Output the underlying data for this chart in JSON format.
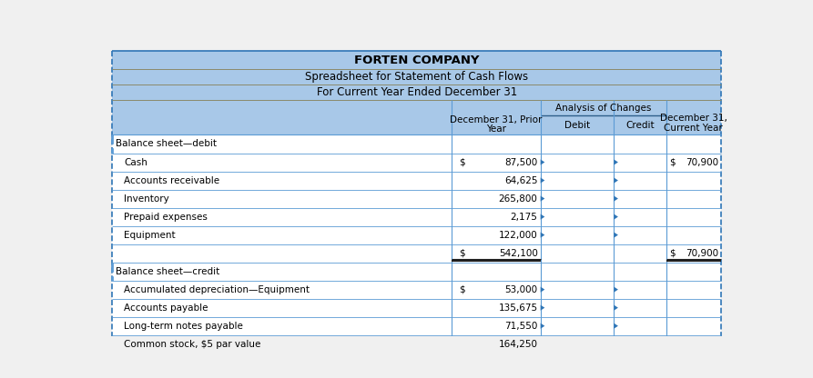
{
  "title1": "FORTEN COMPANY",
  "title2": "Spreadsheet for Statement of Cash Flows",
  "title3": "For Current Year Ended December 31",
  "header_bg": "#7DB3D8",
  "light_blue_bg": "#A8C8E8",
  "white_bg": "#FFFFFF",
  "col_headers_line1": [
    "December 31, Prior",
    "Analysis of Changes",
    "December 31,"
  ],
  "col_headers_line2": [
    "Year",
    "",
    "Current Year"
  ],
  "sub_headers": [
    "Debit",
    "Credit"
  ],
  "rows": [
    {
      "label": "Balance sheet—debit",
      "indent": 0,
      "prior": "",
      "prior_dollar": false,
      "current": "",
      "current_dollar": false,
      "section_header": true,
      "total_row": false,
      "has_triangle": false
    },
    {
      "label": "Cash",
      "indent": 1,
      "prior": "87,500",
      "prior_dollar": true,
      "current": "70,900",
      "current_dollar": true,
      "section_header": false,
      "total_row": false,
      "has_triangle": true
    },
    {
      "label": "Accounts receivable",
      "indent": 1,
      "prior": "64,625",
      "prior_dollar": false,
      "current": "",
      "current_dollar": false,
      "section_header": false,
      "total_row": false,
      "has_triangle": true
    },
    {
      "label": "Inventory",
      "indent": 1,
      "prior": "265,800",
      "prior_dollar": false,
      "current": "",
      "current_dollar": false,
      "section_header": false,
      "total_row": false,
      "has_triangle": true
    },
    {
      "label": "Prepaid expenses",
      "indent": 1,
      "prior": "2,175",
      "prior_dollar": false,
      "current": "",
      "current_dollar": false,
      "section_header": false,
      "total_row": false,
      "has_triangle": true
    },
    {
      "label": "Equipment",
      "indent": 1,
      "prior": "122,000",
      "prior_dollar": false,
      "current": "",
      "current_dollar": false,
      "section_header": false,
      "total_row": false,
      "has_triangle": true
    },
    {
      "label": "",
      "indent": 0,
      "prior": "542,100",
      "prior_dollar": true,
      "current": "70,900",
      "current_dollar": true,
      "section_header": false,
      "total_row": true,
      "has_triangle": false
    },
    {
      "label": "Balance sheet—credit",
      "indent": 0,
      "prior": "",
      "prior_dollar": false,
      "current": "",
      "current_dollar": false,
      "section_header": true,
      "total_row": false,
      "has_triangle": false
    },
    {
      "label": "Accumulated depreciation—Equipment",
      "indent": 1,
      "prior": "53,000",
      "prior_dollar": true,
      "current": "",
      "current_dollar": false,
      "section_header": false,
      "total_row": false,
      "has_triangle": true
    },
    {
      "label": "Accounts payable",
      "indent": 1,
      "prior": "135,675",
      "prior_dollar": false,
      "current": "",
      "current_dollar": false,
      "section_header": false,
      "total_row": false,
      "has_triangle": true
    },
    {
      "label": "Long-term notes payable",
      "indent": 1,
      "prior": "71,550",
      "prior_dollar": false,
      "current": "",
      "current_dollar": false,
      "section_header": false,
      "total_row": false,
      "has_triangle": true
    },
    {
      "label": "Common stock, $5 par value",
      "indent": 1,
      "prior": "164,250",
      "prior_dollar": false,
      "current": "",
      "current_dollar": false,
      "section_header": false,
      "total_row": false,
      "has_triangle": true
    }
  ],
  "outer_border_color": "#2E75B6",
  "inner_line_color": "#5B9BD5",
  "header_divider_color": "#7A9BBF",
  "triangle_color": "#2E75B6",
  "double_line_color": "#1F1F1F"
}
